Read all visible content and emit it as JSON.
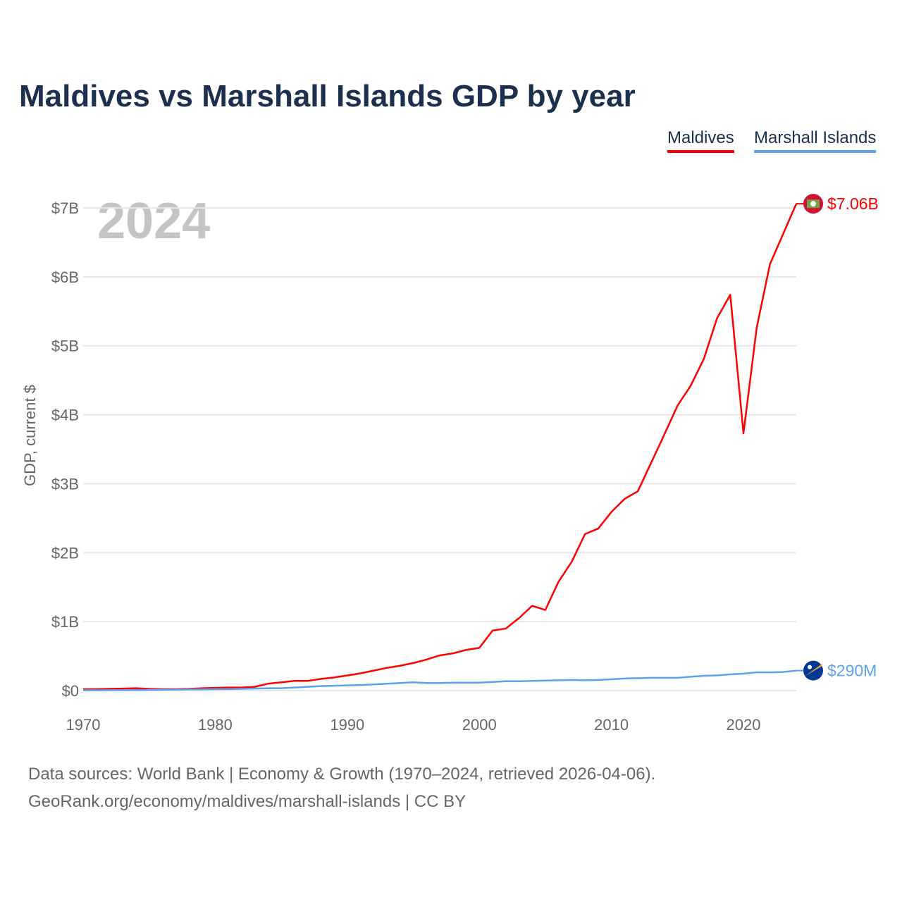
{
  "title": "Maldives vs Marshall Islands GDP by year",
  "legend": [
    {
      "label": "Maldives",
      "color": "#ff0000"
    },
    {
      "label": "Marshall Islands",
      "color": "#5aa2ee"
    }
  ],
  "year_watermark": "2024",
  "footer": {
    "line1": "Data sources: World Bank | Economy & Growth (1970–2024, retrieved 2026-04-06).",
    "line2": "GeoRank.org/economy/maldives/marshall-islands | CC BY"
  },
  "chart_data": {
    "type": "line",
    "title": "Maldives vs Marshall Islands GDP by year",
    "ylabel": "GDP, current $",
    "xlabel": "",
    "xlim": [
      1970,
      2024
    ],
    "ylim": [
      0,
      7
    ],
    "y_unit": "billions USD",
    "x_ticks": [
      "1970",
      "1980",
      "1990",
      "2000",
      "2010",
      "2020"
    ],
    "y_ticks": [
      {
        "value": 0,
        "label": "$0"
      },
      {
        "value": 1,
        "label": "$1B"
      },
      {
        "value": 2,
        "label": "$2B"
      },
      {
        "value": 3,
        "label": "$3B"
      },
      {
        "value": 4,
        "label": "$4B"
      },
      {
        "value": 5,
        "label": "$5B"
      },
      {
        "value": 6,
        "label": "$6B"
      },
      {
        "value": 7,
        "label": "$7B"
      }
    ],
    "grid": true,
    "legend_position": "top-right",
    "x": [
      1970,
      1971,
      1972,
      1973,
      1974,
      1975,
      1976,
      1977,
      1978,
      1979,
      1980,
      1981,
      1982,
      1983,
      1984,
      1985,
      1986,
      1987,
      1988,
      1989,
      1990,
      1991,
      1992,
      1993,
      1994,
      1995,
      1996,
      1997,
      1998,
      1999,
      2000,
      2001,
      2002,
      2003,
      2004,
      2005,
      2006,
      2007,
      2008,
      2009,
      2010,
      2011,
      2012,
      2013,
      2014,
      2015,
      2016,
      2017,
      2018,
      2019,
      2020,
      2021,
      2022,
      2023,
      2024
    ],
    "series": [
      {
        "name": "Maldives",
        "color": "#ff0000",
        "end_label": "$7.06B",
        "values": [
          0.02,
          0.02,
          0.025,
          0.03,
          0.035,
          0.025,
          0.02,
          0.02,
          0.025,
          0.035,
          0.04,
          0.045,
          0.045,
          0.055,
          0.1,
          0.12,
          0.14,
          0.14,
          0.17,
          0.19,
          0.22,
          0.25,
          0.29,
          0.33,
          0.36,
          0.4,
          0.45,
          0.51,
          0.54,
          0.59,
          0.62,
          0.87,
          0.9,
          1.05,
          1.23,
          1.17,
          1.58,
          1.87,
          2.27,
          2.35,
          2.59,
          2.78,
          2.89,
          3.3,
          3.71,
          4.13,
          4.42,
          4.81,
          5.4,
          5.74,
          3.73,
          5.26,
          6.18,
          6.62,
          7.06
        ]
      },
      {
        "name": "Marshall Islands",
        "color": "#5aa2ee",
        "end_label": "$290M",
        "values": [
          0.005,
          0.005,
          0.006,
          0.007,
          0.008,
          0.01,
          0.012,
          0.014,
          0.016,
          0.018,
          0.02,
          0.022,
          0.025,
          0.03,
          0.035,
          0.035,
          0.045,
          0.055,
          0.065,
          0.07,
          0.075,
          0.08,
          0.09,
          0.1,
          0.11,
          0.12,
          0.11,
          0.11,
          0.115,
          0.115,
          0.115,
          0.125,
          0.135,
          0.135,
          0.14,
          0.145,
          0.15,
          0.155,
          0.15,
          0.155,
          0.165,
          0.175,
          0.18,
          0.185,
          0.185,
          0.185,
          0.2,
          0.215,
          0.22,
          0.235,
          0.245,
          0.265,
          0.265,
          0.27,
          0.29
        ]
      }
    ]
  }
}
